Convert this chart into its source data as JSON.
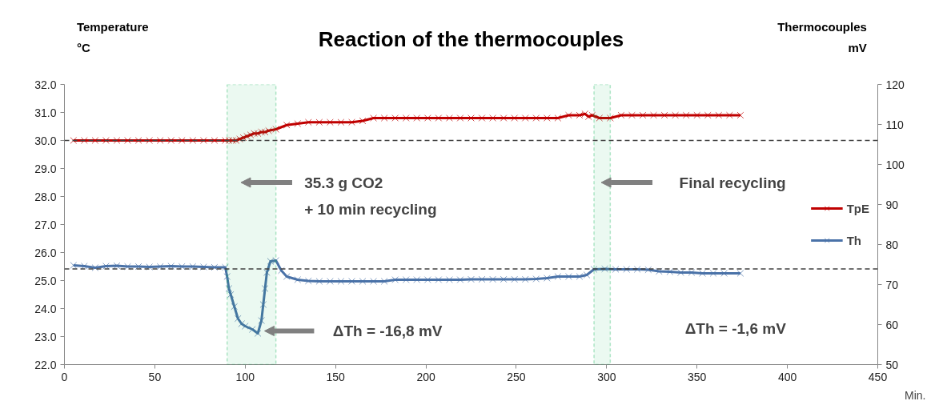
{
  "chart_data": {
    "type": "line",
    "title": "Reaction of the thermocouples",
    "xlabel": "Min.",
    "ylabel": "Temperature\n°C",
    "y2label": "Thermocouples\nmV",
    "xlim": [
      0,
      450
    ],
    "xticks": [
      0,
      50,
      100,
      150,
      200,
      250,
      300,
      350,
      400,
      450
    ],
    "ylim": [
      22,
      32
    ],
    "yticks": [
      {
        "value": 22,
        "label": "22.0"
      },
      {
        "value": 23,
        "label": "23.0"
      },
      {
        "value": 24,
        "label": "24.0"
      },
      {
        "value": 25,
        "label": "25.0"
      },
      {
        "value": 26,
        "label": "26.0"
      },
      {
        "value": 27,
        "label": "27.0"
      },
      {
        "value": 28,
        "label": "28.0"
      },
      {
        "value": 29,
        "label": "29.0"
      },
      {
        "value": 30,
        "label": "30.0"
      },
      {
        "value": 31,
        "label": "31.0"
      },
      {
        "value": 32,
        "label": "32.0"
      }
    ],
    "y2lim": [
      50,
      120
    ],
    "y2ticks": [
      50,
      60,
      70,
      80,
      90,
      100,
      110,
      120
    ],
    "grid": false,
    "legend": "right",
    "marker": "cross",
    "line_style": "solid",
    "series": [
      {
        "name": "TpE",
        "color": "#c00000",
        "x": [
          5,
          11,
          17,
          23,
          29,
          35,
          41,
          47,
          53,
          59,
          65,
          71,
          77,
          83,
          89,
          91,
          93,
          95,
          97,
          99,
          101,
          103,
          105,
          107,
          109,
          111,
          113,
          117,
          123,
          129,
          135,
          141,
          147,
          153,
          159,
          165,
          171,
          177,
          183,
          189,
          195,
          201,
          207,
          213,
          219,
          225,
          231,
          237,
          243,
          249,
          255,
          261,
          267,
          273,
          279,
          285,
          288,
          290,
          292,
          296,
          302,
          308,
          314,
          320,
          326,
          332,
          338,
          344,
          350,
          356,
          362,
          368,
          374
        ],
        "values": [
          30.0,
          30.0,
          30.0,
          30.0,
          30.0,
          30.0,
          30.0,
          30.0,
          30.0,
          30.0,
          30.0,
          30.0,
          30.0,
          30.0,
          30.0,
          30.0,
          30.0,
          30.0,
          30.05,
          30.1,
          30.15,
          30.2,
          30.25,
          30.25,
          30.3,
          30.3,
          30.35,
          30.4,
          30.55,
          30.6,
          30.65,
          30.65,
          30.65,
          30.65,
          30.65,
          30.7,
          30.8,
          30.8,
          30.8,
          30.8,
          30.8,
          30.8,
          30.8,
          30.8,
          30.8,
          30.8,
          30.8,
          30.8,
          30.8,
          30.8,
          30.8,
          30.8,
          30.8,
          30.8,
          30.9,
          30.9,
          30.95,
          30.85,
          30.9,
          30.8,
          30.8,
          30.9,
          30.9,
          30.9,
          30.9,
          30.9,
          30.9,
          30.9,
          30.9,
          30.9,
          30.9,
          30.9,
          30.9
        ]
      },
      {
        "name": "Th",
        "color": "#4a72a8",
        "axis": "y2",
        "x": [
          5,
          11,
          17,
          23,
          29,
          35,
          41,
          47,
          53,
          59,
          65,
          71,
          77,
          83,
          89,
          90,
          91,
          92,
          94,
          96,
          98,
          100,
          104,
          107,
          109,
          110,
          111,
          112,
          114,
          117,
          120,
          123,
          129,
          135,
          141,
          147,
          153,
          159,
          165,
          171,
          177,
          183,
          189,
          195,
          201,
          207,
          213,
          219,
          225,
          231,
          237,
          243,
          249,
          255,
          261,
          267,
          273,
          279,
          285,
          289,
          293,
          299,
          305,
          311,
          317,
          323,
          329,
          335,
          341,
          347,
          353,
          359,
          365,
          374
        ],
        "values": [
          74.8,
          74.6,
          74.2,
          74.6,
          74.7,
          74.5,
          74.5,
          74.4,
          74.5,
          74.6,
          74.5,
          74.5,
          74.4,
          74.3,
          74.3,
          72,
          69,
          67.5,
          64.5,
          61.5,
          60.2,
          59.6,
          58.8,
          57.8,
          61,
          65,
          69,
          73,
          75.8,
          76,
          73.5,
          72,
          71.2,
          70.9,
          70.8,
          70.8,
          70.8,
          70.8,
          70.8,
          70.8,
          70.8,
          71.2,
          71.2,
          71.2,
          71.2,
          71.2,
          71.2,
          71.2,
          71.3,
          71.3,
          71.3,
          71.3,
          71.3,
          71.3,
          71.4,
          71.6,
          72.0,
          72.0,
          72.0,
          72.4,
          73.8,
          73.9,
          73.8,
          73.8,
          73.8,
          73.7,
          73.3,
          73.2,
          73.0,
          73.0,
          72.8,
          72.8,
          72.8,
          72.8
        ]
      }
    ],
    "ref_lines": [
      {
        "axis": "y",
        "value": 30.0,
        "label": null,
        "color": "#404040",
        "line_style": "dashed"
      },
      {
        "axis": "y2",
        "value": 73.9,
        "label": null,
        "color": "#404040",
        "line_style": "dashed"
      }
    ],
    "bands": [
      {
        "axis": "x",
        "from": 90,
        "to": 117,
        "label": null,
        "color": "#00b050"
      },
      {
        "axis": "x",
        "from": 293,
        "to": 302,
        "label": null,
        "color": "#00b050"
      }
    ],
    "annotations": [
      "35.3 g CO2\n+ 10 min recycling",
      "Final recycling",
      "ΔTh = -16,8 mV",
      "ΔTh = -1,6 mV"
    ]
  }
}
